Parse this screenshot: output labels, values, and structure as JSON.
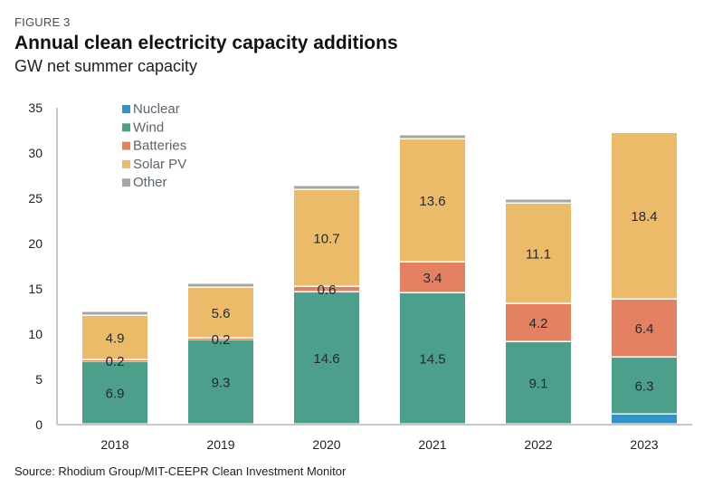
{
  "header": {
    "figure_label": "FIGURE 3",
    "title": "Annual clean electricity capacity additions",
    "subtitle": "GW net summer capacity"
  },
  "footer": {
    "source": "Source: Rhodium Group/MIT-CEEPR Clean Investment Monitor"
  },
  "chart_data": {
    "type": "bar",
    "stacked": true,
    "title": "Annual clean electricity capacity additions",
    "subtitle": "GW net summer capacity",
    "xlabel": "",
    "ylabel": "GW net summer capacity",
    "categories": [
      "2018",
      "2019",
      "2020",
      "2021",
      "2022",
      "2023"
    ],
    "ylim": [
      0,
      35
    ],
    "yticks": [
      0,
      5,
      10,
      15,
      20,
      25,
      30,
      35
    ],
    "grid": false,
    "legend_position": "top-left",
    "series": [
      {
        "name": "Nuclear",
        "color": "#3393c6",
        "values": [
          0,
          0,
          0,
          0,
          0,
          1.1
        ],
        "labels": [
          "",
          "",
          "",
          "",
          "",
          ""
        ]
      },
      {
        "name": "Wind",
        "color": "#4c9f8a",
        "values": [
          6.9,
          9.3,
          14.6,
          14.5,
          9.1,
          6.3
        ],
        "labels": [
          "6.9",
          "9.3",
          "14.6",
          "14.5",
          "9.1",
          "6.3"
        ]
      },
      {
        "name": "Batteries",
        "color": "#e38160",
        "values": [
          0.2,
          0.2,
          0.6,
          3.4,
          4.2,
          6.4
        ],
        "labels": [
          "0.2",
          "0.2",
          "0.6",
          "3.4",
          "4.2",
          "6.4"
        ]
      },
      {
        "name": "Solar PV",
        "color": "#ebbb6a",
        "values": [
          4.9,
          5.6,
          10.7,
          13.6,
          11.1,
          18.4
        ],
        "labels": [
          "4.9",
          "5.6",
          "10.7",
          "13.6",
          "11.1",
          "18.4"
        ]
      },
      {
        "name": "Other",
        "color": "#a6a6a6",
        "values": [
          0.2,
          0.2,
          0.2,
          0.1,
          0.1,
          0
        ],
        "labels": [
          "",
          "",
          "",
          "",
          "",
          ""
        ]
      }
    ]
  }
}
